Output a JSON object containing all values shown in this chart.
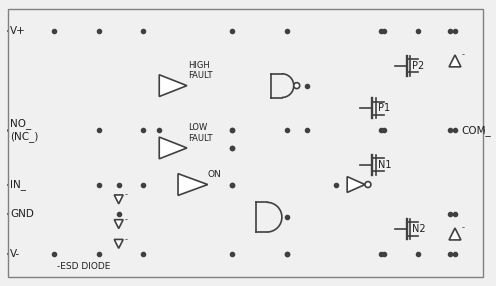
{
  "background_color": "#f0f0f0",
  "line_color": "#404040",
  "box_color": "#c8c8c8",
  "text_color": "#202020",
  "border_color": "#808080",
  "labels": {
    "vplus": "V+",
    "vminus": "V-",
    "no": "NO_\n(NC_)",
    "in": "IN_",
    "gnd": "GND",
    "com": "COM_",
    "high_fault": "HIGH\nFAULT",
    "low_fault": "LOW\nFAULT",
    "on": "ON",
    "p1": "P1",
    "p2": "P2",
    "n1": "N1",
    "n2": "N2",
    "esd": "-ESD DIODE"
  },
  "figsize": [
    4.96,
    2.86
  ],
  "dpi": 100
}
